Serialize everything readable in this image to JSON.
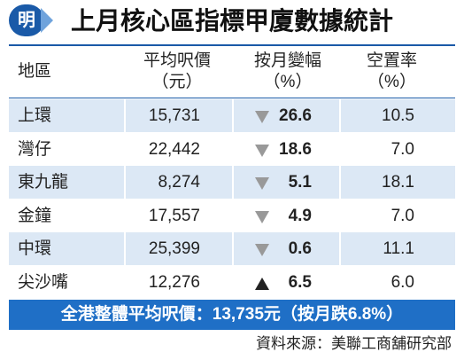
{
  "header": {
    "logo": "明",
    "title": "上月核心區指標甲廈數據統計"
  },
  "table": {
    "columns": [
      {
        "label": "地區"
      },
      {
        "label": "平均呎價",
        "unit": "（元）"
      },
      {
        "label": "按月變幅",
        "unit": "（%）"
      },
      {
        "label": "空置率",
        "unit": "（%）"
      }
    ],
    "rows": [
      {
        "region": "上環",
        "price": "15,731",
        "trend": "down",
        "change": "26.6",
        "vacancy": "10.5"
      },
      {
        "region": "灣仔",
        "price": "22,442",
        "trend": "down",
        "change": "18.6",
        "vacancy": "7.0"
      },
      {
        "region": "東九龍",
        "price": "8,274",
        "trend": "down",
        "change": "5.1",
        "vacancy": "18.1"
      },
      {
        "region": "金鐘",
        "price": "17,557",
        "trend": "down",
        "change": "4.9",
        "vacancy": "7.0"
      },
      {
        "region": "中環",
        "price": "25,399",
        "trend": "down",
        "change": "0.6",
        "vacancy": "11.1"
      },
      {
        "region": "尖沙嘴",
        "price": "12,276",
        "trend": "up",
        "change": "6.5",
        "vacancy": "6.0"
      }
    ]
  },
  "footer": {
    "summary": "全港整體平均呎價：13,735元（按月跌6.8%）",
    "source": "資料來源：美聯工商舖研究部"
  }
}
